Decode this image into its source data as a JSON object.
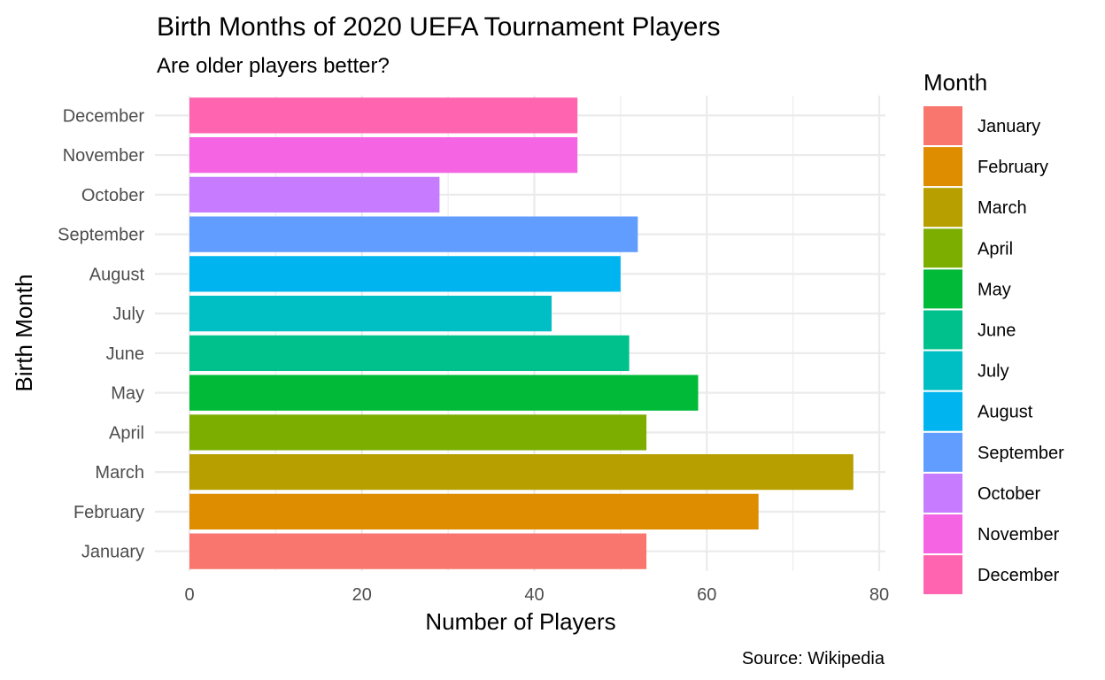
{
  "chart_data": {
    "type": "bar",
    "orientation": "horizontal",
    "title": "Birth Months of 2020 UEFA Tournament Players",
    "subtitle": "Are older players better?",
    "xlabel": "Number of Players",
    "ylabel": "Birth Month",
    "caption": "Source: Wikipedia",
    "xlim": [
      0,
      80
    ],
    "x_ticks": [
      "0",
      "20",
      "40",
      "60",
      "80"
    ],
    "categories": [
      "January",
      "February",
      "March",
      "April",
      "May",
      "June",
      "July",
      "August",
      "September",
      "October",
      "November",
      "December"
    ],
    "values": [
      53,
      66,
      77,
      53,
      59,
      51,
      42,
      50,
      52,
      29,
      45,
      45
    ],
    "colors": [
      "#F8766D",
      "#DE8C00",
      "#B79F00",
      "#7CAE00",
      "#00BA38",
      "#00C08B",
      "#00BFC4",
      "#00B4F0",
      "#619CFF",
      "#C77CFF",
      "#F564E3",
      "#FF64B0"
    ],
    "grid": true,
    "legend": {
      "title": "Month",
      "position": "right",
      "entries": [
        "January",
        "February",
        "March",
        "April",
        "May",
        "June",
        "July",
        "August",
        "September",
        "October",
        "November",
        "December"
      ]
    }
  }
}
